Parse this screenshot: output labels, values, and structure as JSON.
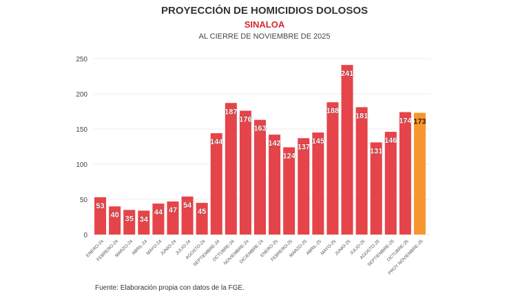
{
  "chart_data": {
    "type": "bar",
    "title": "PROYECCIÓN DE HOMICIDIOS DOLOSOS",
    "subtitle": "SINALOA",
    "subtitle2": "AL CIERRE DE NOVIEMBRE DE 2025",
    "source": "Fuente: Elaboración propia con datos de la FGE.",
    "categories": [
      "ENERO-24",
      "FEBRERO-24",
      "MARZO-24",
      "ABRIL-24",
      "MAYO-24",
      "JUNIO-24",
      "JULIO-24",
      "AGOSTO-24",
      "SEPTIEMBRE-24",
      "OCTUBRE-24",
      "NOVIEMBRE-24",
      "DICIEMBRE-24",
      "ENERO-25",
      "FEBRERO-25",
      "MARZO-25",
      "ABRIL-25",
      "MAYO-25",
      "JUNIO-25",
      "JULIO-25",
      "AGOSTO-25",
      "SEPTIEMBRE-25",
      "OCTUBRE-25",
      "PROY NOVIEMBRE-25"
    ],
    "values": [
      53,
      40,
      35,
      34,
      44,
      47,
      54,
      45,
      144,
      187,
      176,
      163,
      142,
      124,
      137,
      145,
      188,
      241,
      181,
      131,
      146,
      174,
      173
    ],
    "ylim": [
      0,
      250
    ],
    "yticks": [
      0,
      50,
      100,
      150,
      200,
      250
    ],
    "grid": true,
    "colors": {
      "actual": "#e5444a",
      "projection": "#f7962f"
    },
    "xlabel": "",
    "ylabel": ""
  }
}
